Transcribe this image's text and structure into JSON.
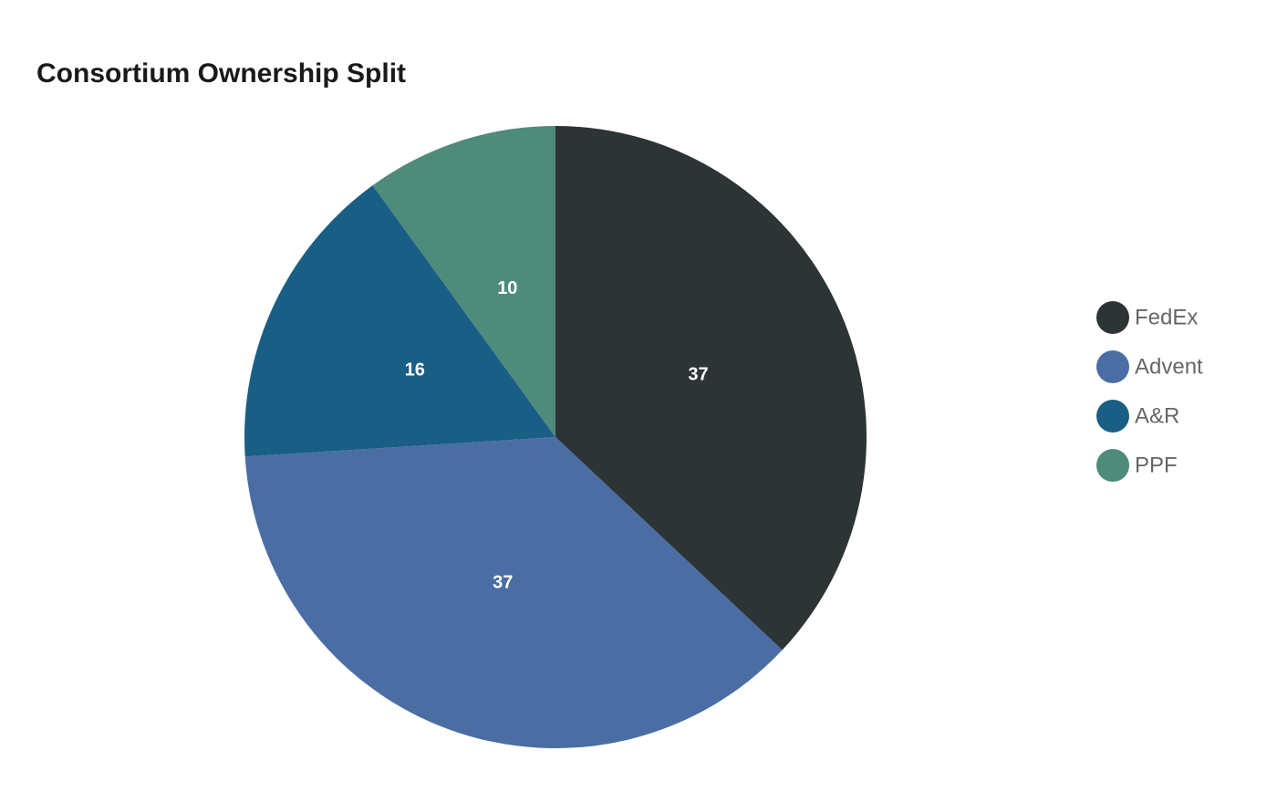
{
  "chart_data": {
    "type": "pie",
    "title": "Consortium Ownership Split",
    "categories": [
      "FedEx",
      "Advent",
      "A&R",
      "PPF"
    ],
    "values": [
      37,
      37,
      16,
      10
    ],
    "colors": [
      "#2d3436",
      "#4a6ea3",
      "#195e85",
      "#4e8b7a"
    ],
    "legend": "right"
  }
}
